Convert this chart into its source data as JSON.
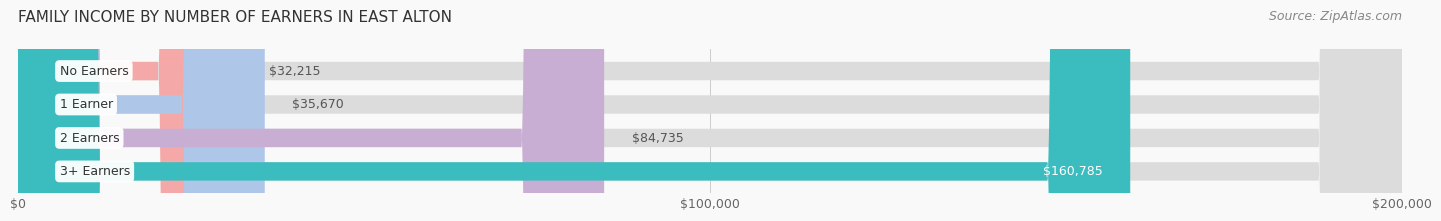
{
  "title": "FAMILY INCOME BY NUMBER OF EARNERS IN EAST ALTON",
  "source": "Source: ZipAtlas.com",
  "categories": [
    "No Earners",
    "1 Earner",
    "2 Earners",
    "3+ Earners"
  ],
  "values": [
    32215,
    35670,
    84735,
    160785
  ],
  "bar_colors": [
    "#f4a9a8",
    "#aec6e8",
    "#c9aed4",
    "#3bbcbe"
  ],
  "bar_bg_color": "#dcdcdc",
  "label_colors": [
    "#555555",
    "#555555",
    "#555555",
    "#ffffff"
  ],
  "xlim": [
    0,
    200000
  ],
  "xticks": [
    0,
    100000,
    200000
  ],
  "xtick_labels": [
    "$0",
    "$100,000",
    "$200,000"
  ],
  "bar_height": 0.55,
  "bg_color": "#f9f9f9",
  "title_fontsize": 11,
  "source_fontsize": 9,
  "tick_fontsize": 9,
  "label_fontsize": 9
}
